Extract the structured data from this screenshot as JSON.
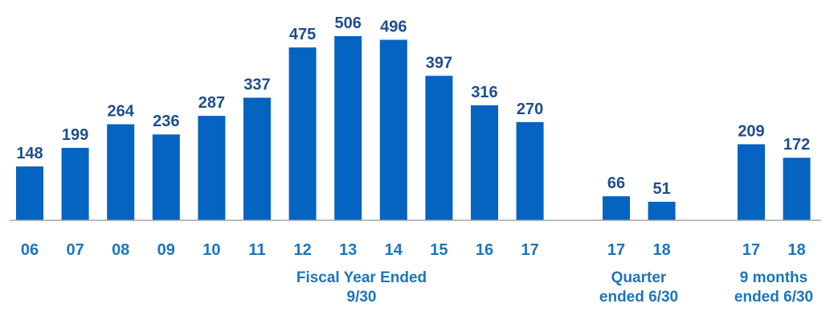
{
  "chart_data": {
    "type": "bar",
    "bar_color": "#0563c1",
    "value_label_color": "#1f4e8c",
    "axis_label_color": "#1c75bc",
    "groups": [
      {
        "label_lines": [
          "Fiscal Year Ended",
          "9/30"
        ],
        "categories": [
          "06",
          "07",
          "08",
          "09",
          "10",
          "11",
          "12",
          "13",
          "14",
          "15",
          "16",
          "17"
        ],
        "values": [
          148,
          199,
          264,
          236,
          287,
          337,
          475,
          506,
          496,
          397,
          316,
          270
        ]
      },
      {
        "label_lines": [
          "Quarter",
          "ended 6/30"
        ],
        "categories": [
          "17",
          "18"
        ],
        "values": [
          66,
          51
        ]
      },
      {
        "label_lines": [
          "9 months",
          "ended 6/30"
        ],
        "categories": [
          "17",
          "18"
        ],
        "values": [
          209,
          172
        ]
      }
    ],
    "ylim": [
      0,
      506
    ],
    "grid": false,
    "legend": "none"
  }
}
